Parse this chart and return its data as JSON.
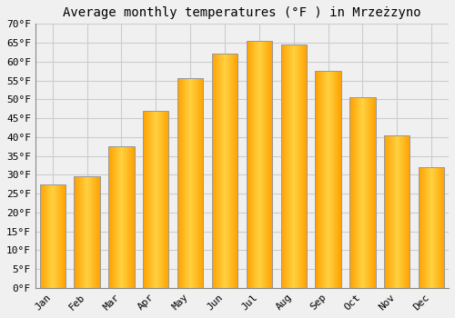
{
  "months": [
    "Jan",
    "Feb",
    "Mar",
    "Apr",
    "May",
    "Jun",
    "Jul",
    "Aug",
    "Sep",
    "Oct",
    "Nov",
    "Dec"
  ],
  "values": [
    27.5,
    29.5,
    37.5,
    47.0,
    55.5,
    62.0,
    65.5,
    64.5,
    57.5,
    50.5,
    40.5,
    32.0
  ],
  "bar_color_top": "#FFD040",
  "bar_color_bottom": "#FFA000",
  "bar_edge_color": "#999999",
  "title": "Average monthly temperatures (°F ) in Mrzeżzyno",
  "ylim": [
    0,
    70
  ],
  "ytick_step": 5,
  "background_color": "#F0F0F0",
  "plot_bg_color": "#F0F0F0",
  "grid_color": "#CCCCCC",
  "title_fontsize": 10,
  "tick_fontsize": 8,
  "font_family": "monospace"
}
